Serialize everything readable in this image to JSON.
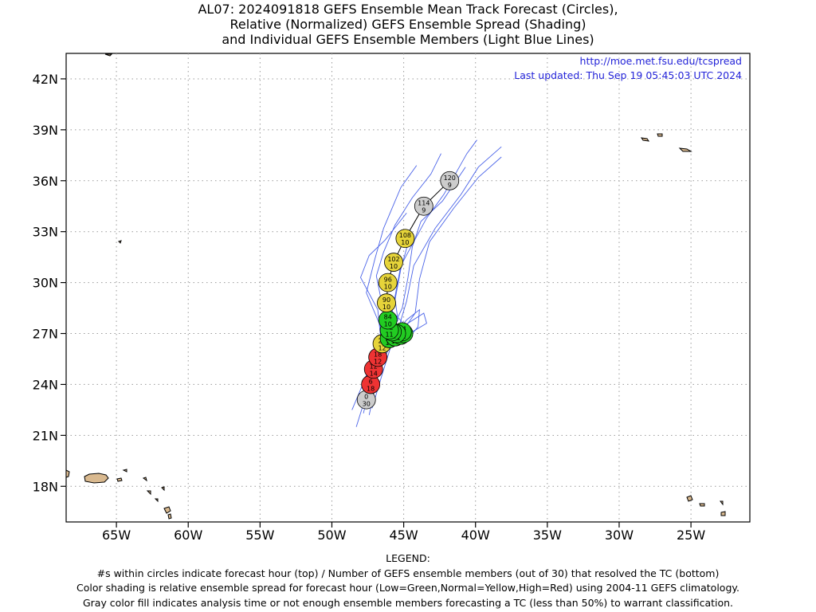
{
  "title": {
    "line1": "AL07: 2024091818 GEFS Ensemble Mean Track Forecast (Circles),",
    "line2": "Relative (Normalized) GEFS Ensemble Spread (Shading)",
    "line3": "and Individual GEFS Ensemble Members (Light Blue Lines)"
  },
  "info": {
    "url": "http://moe.met.fsu.edu/tcspread",
    "updated": "Last updated: Thu Sep 19 05:45:03 UTC 2024"
  },
  "legend": {
    "heading": "LEGEND:",
    "line1": "#s within circles indicate forecast hour (top) / Number of GEFS ensemble members (out of 30) that resolved the TC (bottom)",
    "line2": "Color shading is relative ensemble spread for forecast hour (Low=Green,Normal=Yellow,High=Red) using 2004-11 GEFS climatology.",
    "line3": "Gray color fill indicates analysis time or not enough ensemble members forecasting a TC (less than 50%) to warrant classification."
  },
  "colors": {
    "gray": "#cccccc",
    "green": "#22cc22",
    "yellow": "#e6d43a",
    "red": "#ee3333",
    "member": "#4a63e8",
    "land": "#d9b98f"
  },
  "chart_data": {
    "type": "map",
    "lon_range": [
      -68.5,
      -20.9
    ],
    "lat_range": [
      15.9,
      43.5
    ],
    "x_ticks": [
      {
        "lon": -65,
        "label": "65W"
      },
      {
        "lon": -60,
        "label": "60W"
      },
      {
        "lon": -55,
        "label": "55W"
      },
      {
        "lon": -50,
        "label": "50W"
      },
      {
        "lon": -45,
        "label": "45W"
      },
      {
        "lon": -40,
        "label": "40W"
      },
      {
        "lon": -35,
        "label": "35W"
      },
      {
        "lon": -30,
        "label": "30W"
      },
      {
        "lon": -25,
        "label": "25W"
      }
    ],
    "y_ticks": [
      {
        "lat": 18,
        "label": "18N"
      },
      {
        "lat": 21,
        "label": "21N"
      },
      {
        "lat": 24,
        "label": "24N"
      },
      {
        "lat": 27,
        "label": "27N"
      },
      {
        "lat": 30,
        "label": "30N"
      },
      {
        "lat": 33,
        "label": "33N"
      },
      {
        "lat": 36,
        "label": "36N"
      },
      {
        "lat": 39,
        "label": "39N"
      },
      {
        "lat": 42,
        "label": "42N"
      }
    ],
    "grid": true,
    "mean_track": [
      {
        "hour": "0",
        "members": "30",
        "lon": -47.6,
        "lat": 23.1,
        "spread": "gray"
      },
      {
        "hour": "6",
        "members": "18",
        "lon": -47.3,
        "lat": 24.0,
        "spread": "red"
      },
      {
        "hour": "12",
        "members": "14",
        "lon": -47.1,
        "lat": 24.9,
        "spread": "red"
      },
      {
        "hour": "18",
        "members": "12",
        "lon": -46.8,
        "lat": 25.6,
        "spread": "red"
      },
      {
        "hour": "24",
        "members": "12",
        "lon": -46.5,
        "lat": 26.4,
        "spread": "yellow"
      },
      {
        "hour": "30",
        "members": "11",
        "lon": -46.0,
        "lat": 26.7,
        "spread": "green"
      },
      {
        "hour": "36",
        "members": "11",
        "lon": -45.6,
        "lat": 26.8,
        "spread": "green"
      },
      {
        "hour": "42",
        "members": "11",
        "lon": -45.2,
        "lat": 26.9,
        "spread": "green"
      },
      {
        "hour": "48",
        "members": "11",
        "lon": -45.0,
        "lat": 27.0,
        "spread": "green"
      },
      {
        "hour": "54",
        "members": "11",
        "lon": -45.1,
        "lat": 27.1,
        "spread": "green"
      },
      {
        "hour": "60",
        "members": "11",
        "lon": -45.5,
        "lat": 27.0,
        "spread": "green"
      },
      {
        "hour": "66",
        "members": "11",
        "lon": -45.8,
        "lat": 27.1,
        "spread": "green"
      },
      {
        "hour": "72",
        "members": "11",
        "lon": -46.0,
        "lat": 27.2,
        "spread": "green"
      },
      {
        "hour": "84",
        "members": "10",
        "lon": -46.1,
        "lat": 27.8,
        "spread": "green"
      },
      {
        "hour": "90",
        "members": "10",
        "lon": -46.2,
        "lat": 28.8,
        "spread": "yellow"
      },
      {
        "hour": "96",
        "members": "10",
        "lon": -46.1,
        "lat": 30.0,
        "spread": "yellow"
      },
      {
        "hour": "102",
        "members": "10",
        "lon": -45.7,
        "lat": 31.2,
        "spread": "yellow"
      },
      {
        "hour": "108",
        "members": "10",
        "lon": -44.9,
        "lat": 32.6,
        "spread": "yellow"
      },
      {
        "hour": "114",
        "members": "9",
        "lon": -43.6,
        "lat": 34.5,
        "spread": "gray"
      },
      {
        "hour": "120",
        "members": "9",
        "lon": -41.8,
        "lat": 36.0,
        "spread": "gray"
      }
    ],
    "ensemble_members": [
      [
        [
          -47.8,
          22.3
        ],
        [
          -47.4,
          23.8
        ],
        [
          -46.9,
          25.2
        ],
        [
          -46.3,
          26.4
        ],
        [
          -45.2,
          27.0
        ],
        [
          -44.2,
          28.2
        ],
        [
          -43.9,
          30.2
        ],
        [
          -43.2,
          32.4
        ],
        [
          -41.5,
          34.4
        ],
        [
          -39.8,
          36.2
        ],
        [
          -38.2,
          37.4
        ]
      ],
      [
        [
          -48.3,
          21.5
        ],
        [
          -47.6,
          23.4
        ],
        [
          -46.9,
          25.0
        ],
        [
          -46.2,
          26.5
        ],
        [
          -46.8,
          27.8
        ],
        [
          -47.6,
          29.4
        ],
        [
          -47.0,
          31.4
        ],
        [
          -46.4,
          33.2
        ],
        [
          -45.2,
          35.6
        ],
        [
          -44.1,
          36.9
        ]
      ],
      [
        [
          -47.4,
          22.2
        ],
        [
          -46.9,
          24.2
        ],
        [
          -46.2,
          26.0
        ],
        [
          -45.4,
          27.2
        ],
        [
          -44.8,
          28.9
        ],
        [
          -44.3,
          31.0
        ],
        [
          -42.8,
          33.2
        ],
        [
          -41.0,
          35.2
        ],
        [
          -39.8,
          36.8
        ],
        [
          -38.2,
          38.0
        ]
      ],
      [
        [
          -48.6,
          22.5
        ],
        [
          -47.9,
          23.9
        ],
        [
          -47.2,
          25.4
        ],
        [
          -46.6,
          26.7
        ],
        [
          -46.8,
          28.4
        ],
        [
          -48.0,
          30.3
        ],
        [
          -47.4,
          31.6
        ],
        [
          -46.3,
          32.5
        ],
        [
          -44.8,
          34.1
        ]
      ],
      [
        [
          -47.2,
          22.6
        ],
        [
          -46.5,
          24.6
        ],
        [
          -45.8,
          26.5
        ],
        [
          -44.2,
          27.2
        ],
        [
          -43.4,
          27.6
        ],
        [
          -43.6,
          28.2
        ],
        [
          -44.9,
          27.5
        ],
        [
          -45.8,
          28.3
        ],
        [
          -45.2,
          31.0
        ],
        [
          -43.4,
          33.8
        ],
        [
          -42.2,
          35.2
        ],
        [
          -40.6,
          37.6
        ],
        [
          -39.9,
          38.4
        ]
      ],
      [
        [
          -47.9,
          23.0
        ],
        [
          -47.1,
          24.7
        ],
        [
          -46.4,
          26.2
        ],
        [
          -45.6,
          27.5
        ],
        [
          -46.6,
          29.1
        ],
        [
          -46.9,
          30.4
        ],
        [
          -46.4,
          31.8
        ],
        [
          -45.6,
          33.4
        ],
        [
          -44.4,
          35.0
        ],
        [
          -43.1,
          36.4
        ],
        [
          -42.4,
          37.6
        ]
      ],
      [
        [
          -47.5,
          23.3
        ],
        [
          -46.6,
          25.6
        ],
        [
          -45.9,
          27.1
        ],
        [
          -45.1,
          28.5
        ],
        [
          -44.7,
          30.3
        ],
        [
          -44.4,
          32.1
        ],
        [
          -43.8,
          33.6
        ],
        [
          -42.3,
          34.8
        ],
        [
          -40.7,
          36.8
        ]
      ],
      [
        [
          -48.0,
          22.8
        ],
        [
          -47.2,
          24.4
        ],
        [
          -46.6,
          25.9
        ],
        [
          -46.0,
          26.9
        ],
        [
          -45.4,
          27.8
        ],
        [
          -45.6,
          29.0
        ],
        [
          -45.2,
          30.8
        ],
        [
          -44.6,
          32.6
        ]
      ],
      [
        [
          -47.1,
          23.8
        ],
        [
          -46.4,
          25.4
        ],
        [
          -45.7,
          26.8
        ],
        [
          -44.8,
          27.8
        ],
        [
          -43.9,
          28.4
        ],
        [
          -44.0,
          27.4
        ],
        [
          -44.6,
          26.8
        ],
        [
          -45.7,
          27.4
        ],
        [
          -46.4,
          28.6
        ]
      ]
    ]
  }
}
